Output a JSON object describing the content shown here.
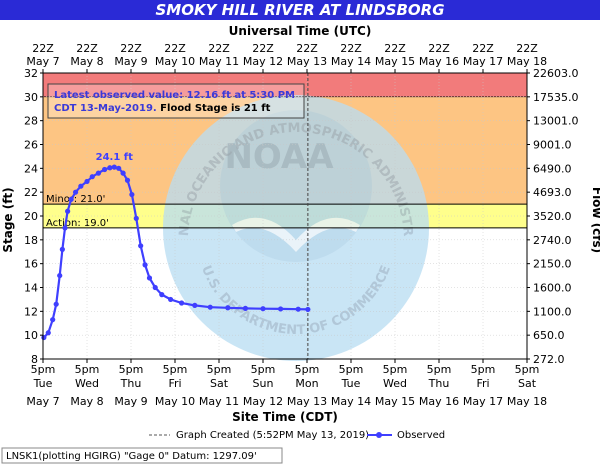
{
  "chart_data": {
    "type": "line",
    "title": "SMOKY HILL RIVER AT LINDSBORG",
    "top_axis_label": "Universal Time (UTC)",
    "bottom_axis_label": "Site Time (CDT)",
    "ylabel": "Stage (ft)",
    "y2label": "Flow (cfs)",
    "ylim": [
      8,
      32
    ],
    "y_ticks": [
      "8",
      "10",
      "12",
      "14",
      "16",
      "18",
      "20",
      "22",
      "24",
      "26",
      "28",
      "30",
      "32"
    ],
    "flow_ticks": [
      "272.0",
      "650.0",
      "1100.0",
      "1600.0",
      "2150.0",
      "2740.0",
      "3520.0",
      "4693.0",
      "6490.0",
      "9001.0",
      "13001.0",
      "17535.0",
      "22603.0"
    ],
    "top_tick_labels": [
      [
        "22Z",
        "May 7"
      ],
      [
        "22Z",
        "May 8"
      ],
      [
        "22Z",
        "May 9"
      ],
      [
        "22Z",
        "May 10"
      ],
      [
        "22Z",
        "May 11"
      ],
      [
        "22Z",
        "May 12"
      ],
      [
        "22Z",
        "May 13"
      ],
      [
        "22Z",
        "May 14"
      ],
      [
        "22Z",
        "May 15"
      ],
      [
        "22Z",
        "May 16"
      ],
      [
        "22Z",
        "May 17"
      ],
      [
        "22Z",
        "May 18"
      ]
    ],
    "bottom_tick_labels": [
      [
        "5pm",
        "Tue",
        "May 7"
      ],
      [
        "5pm",
        "Wed",
        "May 8"
      ],
      [
        "5pm",
        "Thu",
        "May 9"
      ],
      [
        "5pm",
        "Fri",
        "May 10"
      ],
      [
        "5pm",
        "Sat",
        "May 11"
      ],
      [
        "5pm",
        "Sun",
        "May 12"
      ],
      [
        "5pm",
        "Mon",
        "May 13"
      ],
      [
        "5pm",
        "Tue",
        "May 14"
      ],
      [
        "5pm",
        "Wed",
        "May 15"
      ],
      [
        "5pm",
        "Thu",
        "May 16"
      ],
      [
        "5pm",
        "Fri",
        "May 17"
      ],
      [
        "5pm",
        "Sat",
        "May 18"
      ]
    ],
    "x_day_range": [
      0,
      11
    ],
    "flood_bands": [
      {
        "from": 30,
        "to": 32,
        "color": "#f27b7b"
      },
      {
        "from": 21,
        "to": 30,
        "color": "#fdc583"
      },
      {
        "from": 19,
        "to": 21,
        "color": "#ffff8c"
      },
      {
        "from": 8,
        "to": 19,
        "color": "#ffffff"
      }
    ],
    "thresholds": [
      {
        "label": "Minor: 21.0'",
        "value": 21.0
      },
      {
        "label": "Action: 19.0'",
        "value": 19.0
      }
    ],
    "peak": {
      "label": "24.1 ft",
      "x": 1.62,
      "y": 24.1
    },
    "graph_created_day": 6.02,
    "series": [
      {
        "name": "Observed",
        "color": "#3f3fff",
        "x": [
          0.02,
          0.12,
          0.22,
          0.3,
          0.38,
          0.44,
          0.5,
          0.56,
          0.64,
          0.74,
          0.86,
          1.0,
          1.12,
          1.26,
          1.4,
          1.52,
          1.62,
          1.72,
          1.82,
          1.92,
          2.02,
          2.12,
          2.22,
          2.32,
          2.42,
          2.55,
          2.7,
          2.9,
          3.15,
          3.45,
          3.8,
          4.2,
          4.6,
          5.0,
          5.4,
          5.8,
          6.02
        ],
        "y": [
          9.8,
          10.2,
          11.3,
          12.6,
          15.0,
          17.2,
          19.0,
          20.4,
          21.4,
          22.0,
          22.5,
          22.9,
          23.3,
          23.6,
          23.9,
          24.05,
          24.1,
          24.0,
          23.6,
          23.0,
          21.8,
          19.8,
          17.5,
          15.9,
          14.8,
          14.0,
          13.4,
          13.0,
          12.7,
          12.5,
          12.35,
          12.3,
          12.25,
          12.22,
          12.2,
          12.18,
          12.16
        ]
      }
    ]
  },
  "info_box": {
    "line1": "Latest observed value: 12.16 ft at 5:30 PM",
    "line2a": "CDT 13-May-2019.",
    "line2b": " Flood Stage is 21 ft"
  },
  "watermark": {
    "logo_text": "NOAA",
    "arc_top": "NATIONAL OCEANIC AND ATMOSPHERIC ADMINISTRATION",
    "arc_bottom": "U.S. DEPARTMENT OF COMMERCE"
  },
  "legend": {
    "graph_created": "Graph Created (5:52PM May 13, 2019)",
    "observed": "Observed"
  },
  "footer": {
    "datum": "LNSK1(plotting HGIRG) \"Gage 0\" Datum: 1297.09'"
  },
  "colors": {
    "title_bar": "#2a2ad6",
    "series": "#3f3fff",
    "info_text": "#3a3ad8"
  }
}
